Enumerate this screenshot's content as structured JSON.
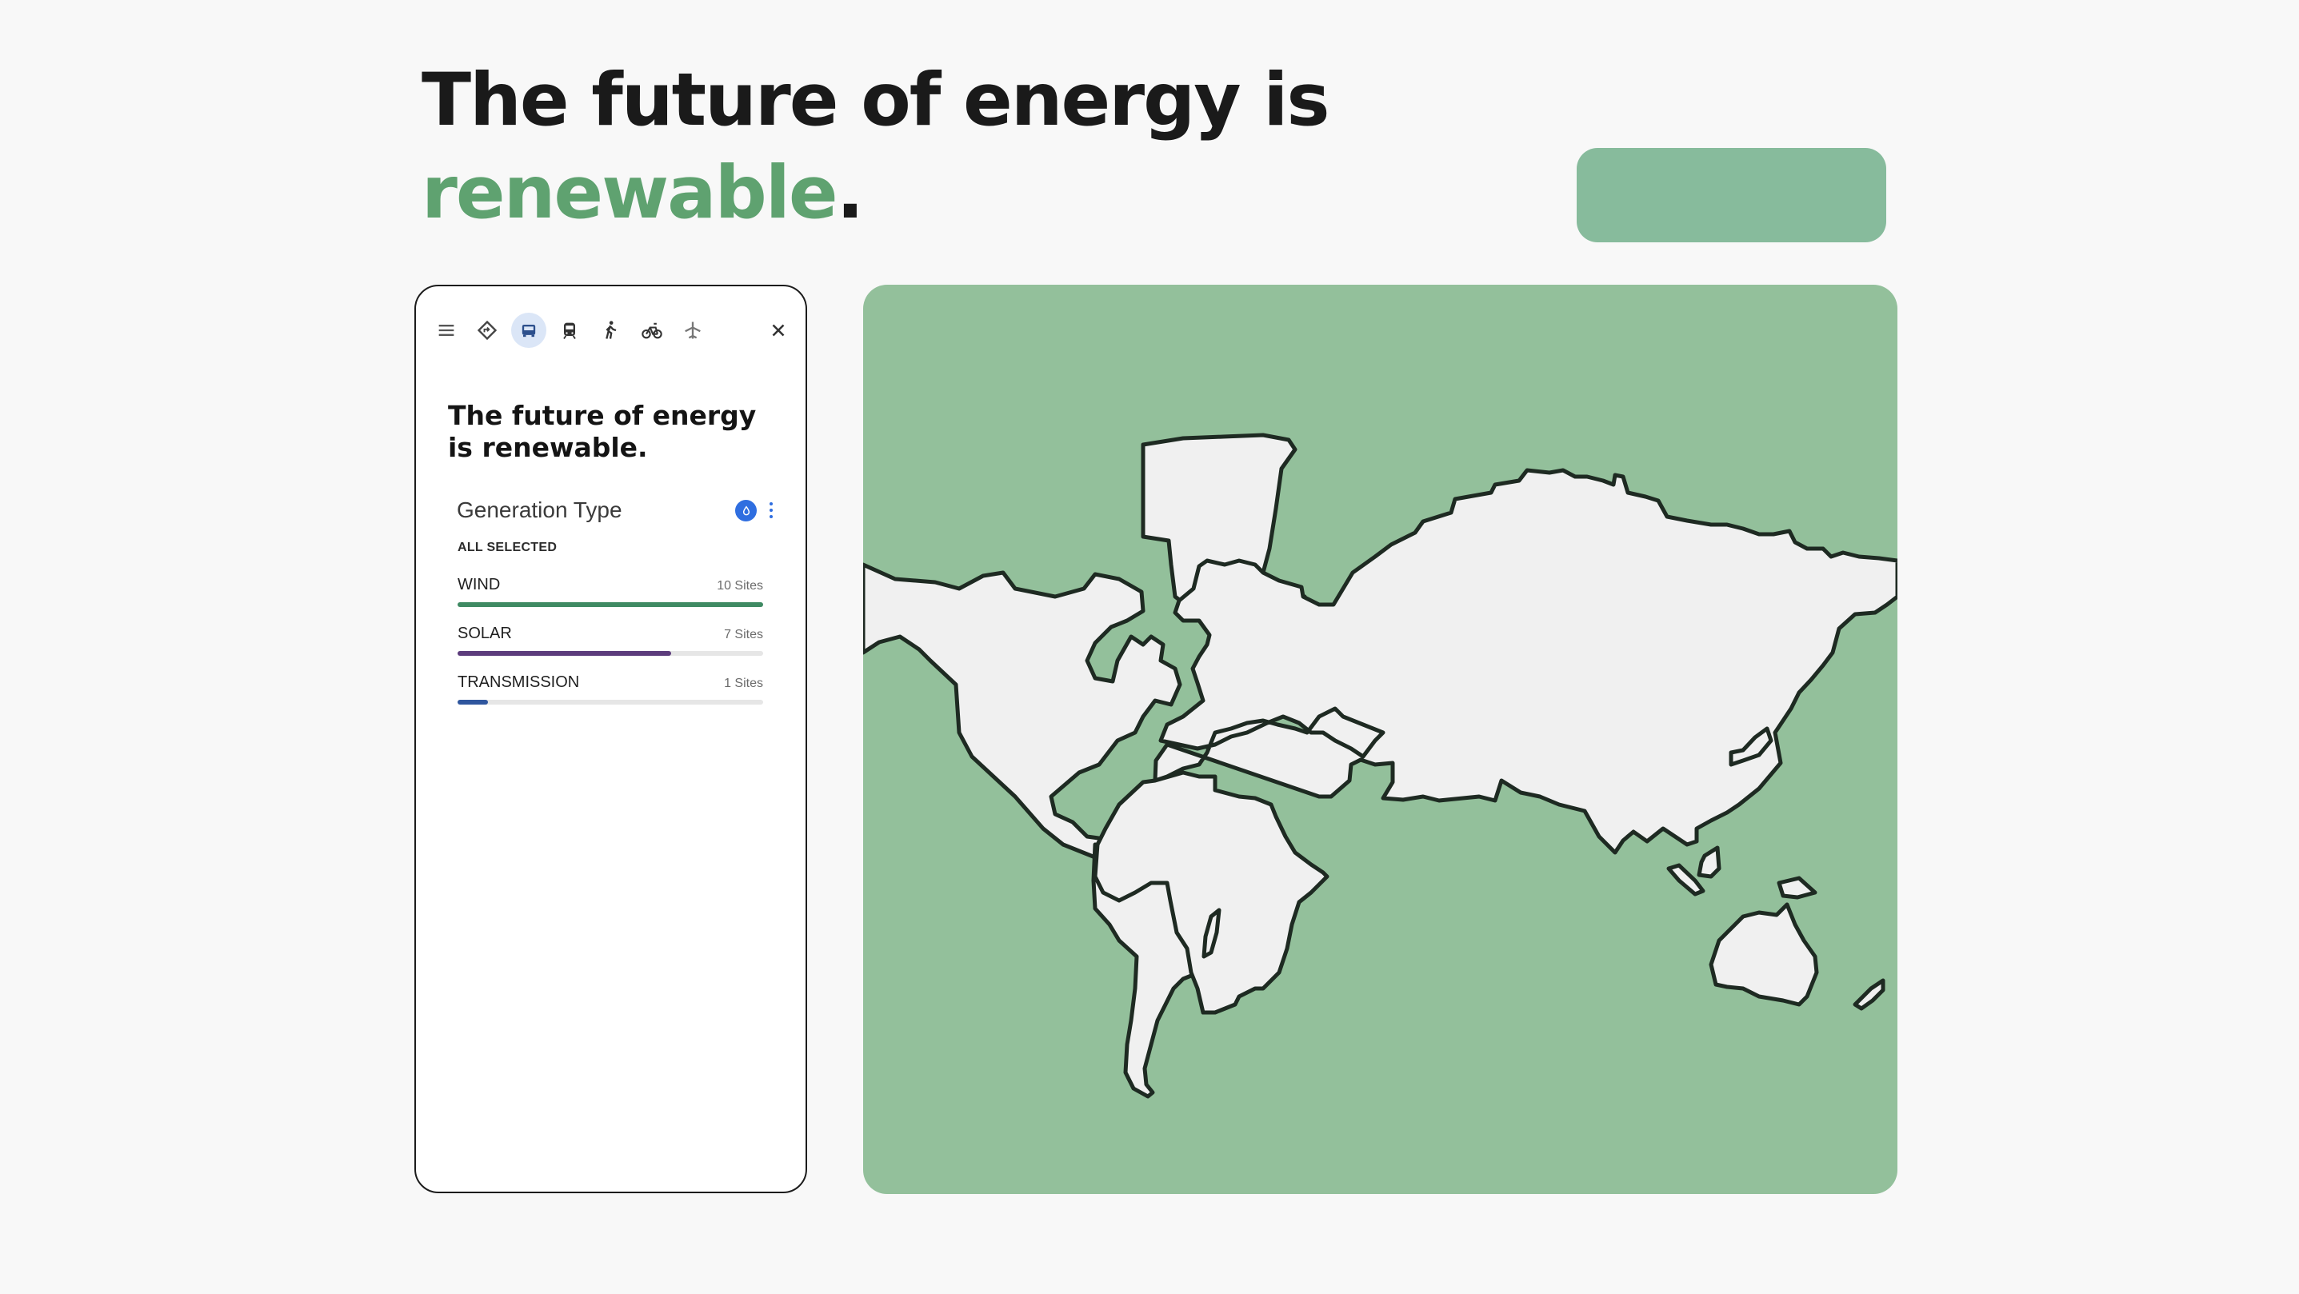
{
  "headline": {
    "line1": "The future of energy is",
    "accent_word": "renewable",
    "punctuation": "."
  },
  "panel": {
    "toolbar": {
      "icons": [
        "menu-icon",
        "directions-icon",
        "car-icon",
        "transit-icon",
        "walk-icon",
        "bike-icon",
        "flight-icon"
      ],
      "active": "car-icon",
      "close_icon": "close-icon"
    },
    "title": "The future of energy is renewable.",
    "filter": {
      "title": "Generation Type",
      "badge_icon": "water-drop-icon",
      "subtitle": "ALL SELECTED",
      "items": [
        {
          "label": "WIND",
          "count": "10 Sites",
          "fraction": 1.0,
          "color": "#3f8a63"
        },
        {
          "label": "SOLAR",
          "count": "7 Sites",
          "fraction": 0.7,
          "color": "#5c3c7c"
        },
        {
          "label": "TRANSMISSION",
          "count": "1 Sites",
          "fraction": 0.1,
          "color": "#2f569e"
        }
      ]
    }
  },
  "colors": {
    "accent": "#5fa270",
    "pill": "#87bb9c",
    "map_background": "#93c09b",
    "land": "#f0f0f0",
    "active_tool": "#dbe6f7",
    "badge": "#2f6ee0"
  }
}
